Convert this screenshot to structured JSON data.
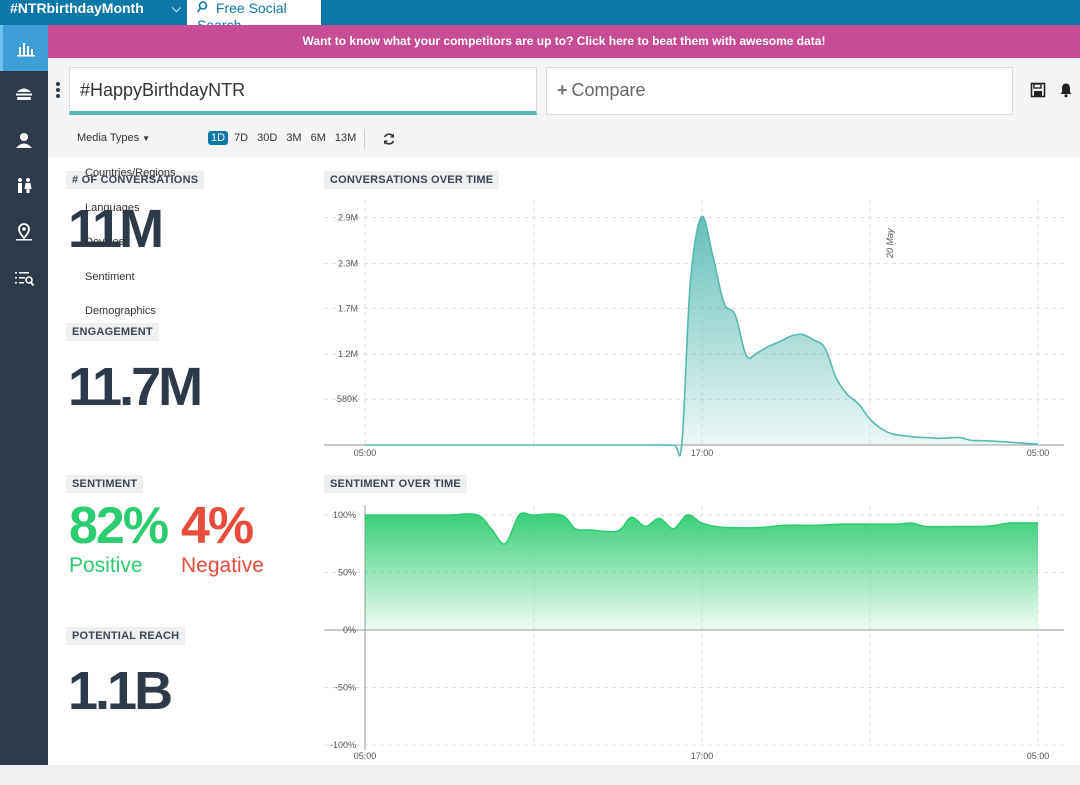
{
  "topbar": {
    "active_tab": "#NTRbirthdayMonth",
    "search_tab": "Free Social Search"
  },
  "banner": {
    "text": "Want to know what your competitors are up to? Click here to beat them with awesome data!"
  },
  "search": {
    "query": "#HappyBirthdayNTR",
    "compare_label": "Compare"
  },
  "filters": {
    "media_types": "Media Types",
    "ranges": [
      "1D",
      "7D",
      "30D",
      "3M",
      "6M",
      "13M"
    ],
    "active_range": "1D",
    "dropdown_items": [
      "Countries/Regions",
      "Languages",
      "Devices",
      "Sentiment",
      "Demographics"
    ]
  },
  "metrics": {
    "conversations_label": "# OF CONVERSATIONS",
    "conversations_value": "11M",
    "engagement_label": "ENGAGEMENT",
    "engagement_value": "11.7M",
    "sentiment_label": "SENTIMENT",
    "positive_value": "82%",
    "positive_label": "Positive",
    "negative_value": "4%",
    "negative_label": "Negative",
    "reach_label": "POTENTIAL REACH",
    "reach_value": "1.1B"
  },
  "colors": {
    "brand": "#0e77a9",
    "banner": "#c64d95",
    "sidebar": "#2c3a4a",
    "teal": "#55b9b2",
    "positive": "#2ecc71",
    "negative": "#e74c3c"
  },
  "chart_data": [
    {
      "type": "area",
      "title": "CONVERSATIONS OVER TIME",
      "x_ticks": [
        "05:00",
        "17:00",
        "05:00"
      ],
      "y_ticks": [
        "580K",
        "1.2M",
        "1.7M",
        "2.3M",
        "2.9M"
      ],
      "y_tick_values": [
        580000,
        1150000,
        1730000,
        2300000,
        2880000
      ],
      "ylim": [
        0,
        2950000
      ],
      "annotation": "20 May",
      "x": [
        0,
        5,
        10,
        11.0,
        11.3,
        11.6,
        12.0,
        12.4,
        12.8,
        13.2,
        13.6,
        14.0,
        14.4,
        14.8,
        15.2,
        15.6,
        16.0,
        16.4,
        16.8,
        17.2,
        17.6,
        18.0,
        18.4,
        18.8,
        19.2,
        19.6,
        20.0,
        20.4,
        20.8,
        21.2,
        21.6,
        22.0,
        22.4,
        22.8,
        23.2,
        23.6,
        24.0
      ],
      "values": [
        0,
        0,
        0,
        0,
        20000,
        2050000,
        2890000,
        2400000,
        1800000,
        1650000,
        1130000,
        1170000,
        1250000,
        1310000,
        1380000,
        1400000,
        1330000,
        1230000,
        850000,
        640000,
        520000,
        330000,
        210000,
        140000,
        120000,
        100000,
        95000,
        85000,
        90000,
        95000,
        60000,
        55000,
        50000,
        40000,
        30000,
        20000,
        10000
      ]
    },
    {
      "type": "area",
      "title": "SENTIMENT OVER TIME",
      "x_ticks": [
        "05:00",
        "17:00",
        "05:00"
      ],
      "y_ticks": [
        "100%",
        "50%",
        "0%",
        "-50%",
        "-100%"
      ],
      "y_tick_values": [
        100,
        50,
        0,
        -50,
        -100
      ],
      "ylim": [
        -100,
        100
      ],
      "x": [
        0,
        1,
        2,
        3,
        4,
        4.5,
        5,
        5.5,
        6,
        7,
        7.5,
        8,
        9,
        9.5,
        10,
        10.5,
        11,
        11.5,
        12,
        12.5,
        13,
        14,
        15,
        16,
        17,
        18,
        19,
        19.5,
        20,
        21,
        22,
        22.5,
        23,
        24
      ],
      "values": [
        100,
        100,
        100,
        100,
        100,
        88,
        75,
        100,
        100,
        100,
        88,
        87,
        86,
        98,
        90,
        97,
        88,
        100,
        93,
        90,
        89,
        89,
        91,
        91,
        92,
        92,
        92,
        93,
        90,
        90,
        90,
        91,
        93,
        93
      ]
    }
  ]
}
